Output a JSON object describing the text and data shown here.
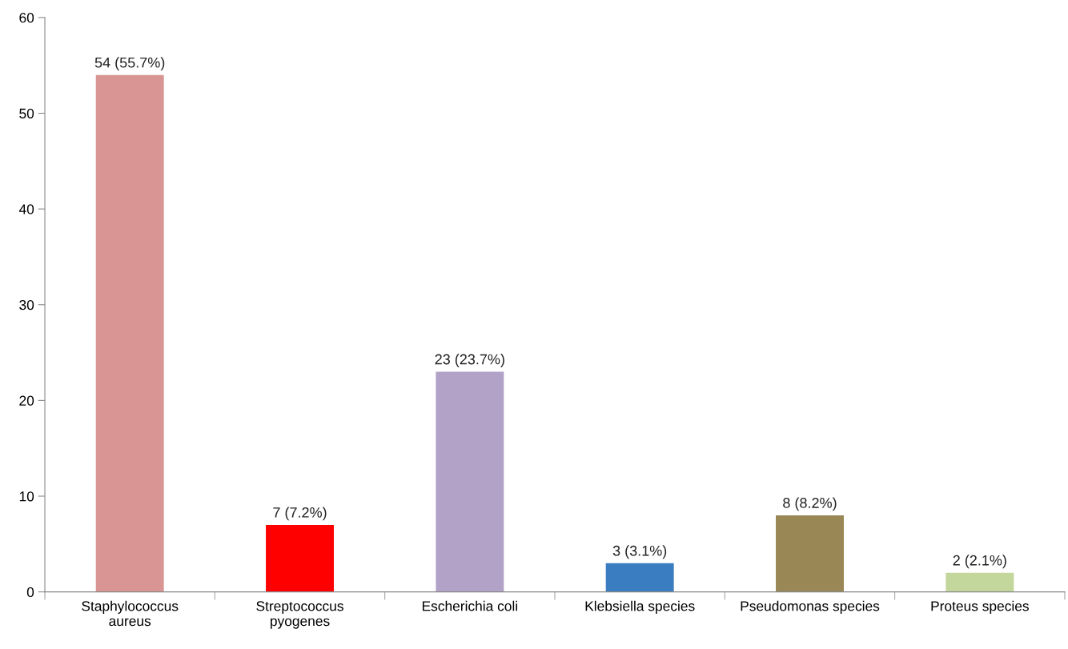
{
  "chart_data": {
    "type": "bar",
    "categories": [
      "Staphylococcus\naureus",
      "Streptococcus\npyogenes",
      "Escherichia coli",
      "Klebsiella species",
      "Pseudomonas species",
      "Proteus species"
    ],
    "values": [
      54,
      7,
      23,
      3,
      8,
      2
    ],
    "colors": [
      "#d99594",
      "#ff0000",
      "#b2a2c7",
      "#3a7dc0",
      "#998855",
      "#c3d69b"
    ],
    "value_labels": [
      "54 (55.7%)",
      "7 (7.2%)",
      "23 (23.7%)",
      "3 (3.1%)",
      "8 (8.2%)",
      "2 (2.1%)"
    ],
    "ylim": [
      0,
      60
    ],
    "yticks": [
      0,
      10,
      20,
      30,
      40,
      50,
      60
    ],
    "grid": false,
    "legend": false
  }
}
